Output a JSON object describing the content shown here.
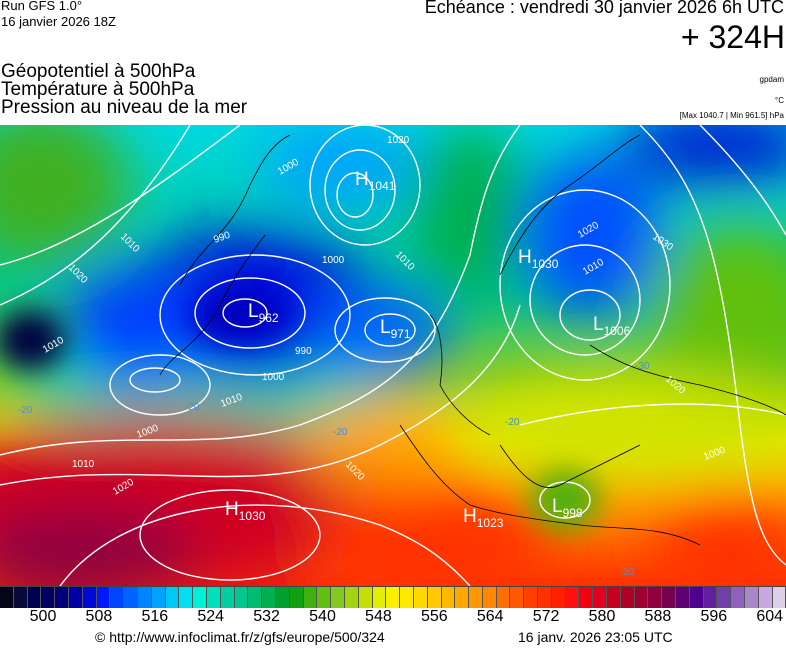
{
  "header": {
    "run": "Run GFS 1.0°",
    "run_date": "16 janvier 2026 18Z",
    "echeance": "Echéance : vendredi 30 janvier 2026 6h UTC",
    "forecast_hour": "+ 324H"
  },
  "titles": [
    "Géopotentiel à 500hPa",
    "Température à 500hPa",
    "Pression au niveau de la mer"
  ],
  "units": {
    "geopotential": "gpdam",
    "temperature": "°C",
    "pressure": "[Max 1040.7 | Min 961.5] hPa"
  },
  "map": {
    "pressure_centers": [
      {
        "type": "H",
        "value": "1041"
      },
      {
        "type": "L",
        "value": "962"
      },
      {
        "type": "L",
        "value": "971"
      },
      {
        "type": "H",
        "value": "1030"
      },
      {
        "type": "L",
        "value": "1006"
      },
      {
        "type": "H",
        "value": "1030"
      },
      {
        "type": "H",
        "value": "1023"
      },
      {
        "type": "L",
        "value": "998"
      }
    ],
    "isobar_labels": [
      "1020",
      "1000",
      "990",
      "1010",
      "1020",
      "1000",
      "1010",
      "990",
      "1000",
      "1010",
      "1010",
      "1000",
      "1010",
      "1020",
      "1020",
      "1020",
      "1010",
      "1030",
      "1020",
      "1000"
    ],
    "temperature_labels": [
      "-20",
      "-20",
      "-20",
      "-30",
      "-20",
      "-20"
    ],
    "colors": {
      "isobar": "#ffffff",
      "isotherm": "#4a90c8",
      "coastline": "#000000"
    }
  },
  "colorbar": {
    "unit": "gpdam",
    "tick_labels": [
      "500",
      "508",
      "516",
      "524",
      "532",
      "540",
      "548",
      "556",
      "564",
      "572",
      "580",
      "588",
      "596",
      "604"
    ],
    "colors": [
      "#05051a",
      "#0a0a3a",
      "#000050",
      "#000064",
      "#00007c",
      "#0000a6",
      "#0008d8",
      "#0018ff",
      "#0044ff",
      "#0064ff",
      "#0084ff",
      "#00a4ff",
      "#00c8f4",
      "#00e0f0",
      "#00f0d8",
      "#00e0bc",
      "#00d0a0",
      "#00c890",
      "#00bc70",
      "#00b050",
      "#00a030",
      "#10a010",
      "#40b010",
      "#60c010",
      "#84c820",
      "#a4d410",
      "#c4e000",
      "#e0f000",
      "#f8f000",
      "#ffe800",
      "#ffd800",
      "#ffc800",
      "#ffb800",
      "#ffa800",
      "#ff9800",
      "#ff8800",
      "#ff7000",
      "#ff5800",
      "#ff4000",
      "#ff3000",
      "#ff2000",
      "#ff1010",
      "#f00010",
      "#e00020",
      "#c80020",
      "#b00028",
      "#a00030",
      "#900040",
      "#780050",
      "#600070",
      "#500090",
      "#6020a0",
      "#7040a8",
      "#9060c0",
      "#a888c8",
      "#c8a8e0",
      "#dcd0e8"
    ]
  },
  "footer": {
    "copyright": "© http://www.infoclimat.fr/z/gfs/europe/500/324",
    "generated": "16 janv. 2026 23:05 UTC"
  }
}
